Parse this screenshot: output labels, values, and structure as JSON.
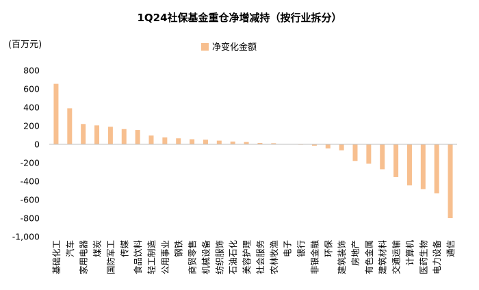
{
  "chart_data": {
    "type": "bar",
    "title": "1Q24社保基金重仓净增减持（按行业拆分）",
    "ylabel": "(百万元)",
    "xlabel": "",
    "ylim": [
      -1000,
      800
    ],
    "yticks": [
      800,
      600,
      400,
      200,
      0,
      -200,
      -400,
      -600,
      -800,
      -1000
    ],
    "ytick_labels": [
      "800",
      "600",
      "400",
      "200",
      "0",
      "-200",
      "-400",
      "-600",
      "-800",
      "-1,000"
    ],
    "legend_position": "top-center",
    "grid": false,
    "categories": [
      "基础化工",
      "汽车",
      "家用电器",
      "煤炭",
      "国防军工",
      "传媒",
      "食品饮料",
      "轻工制造",
      "公用事业",
      "钢铁",
      "商贸零售",
      "机械设备",
      "纺织服饰",
      "石油石化",
      "美容护理",
      "社会服务",
      "农林牧渔",
      "电子",
      "银行",
      "非银金融",
      "环保",
      "建筑装饰",
      "房地产",
      "有色金属",
      "建筑材料",
      "交通运输",
      "计算机",
      "医药生物",
      "电力设备",
      "通信"
    ],
    "series": [
      {
        "name": "净变化金额",
        "color": "#f7bf8f",
        "values": [
          655,
          390,
          220,
          205,
          190,
          165,
          155,
          95,
          75,
          65,
          55,
          50,
          40,
          30,
          25,
          15,
          12,
          3,
          -5,
          -15,
          -45,
          -65,
          -180,
          -210,
          -270,
          -355,
          -445,
          -485,
          -530,
          -800
        ]
      }
    ]
  }
}
